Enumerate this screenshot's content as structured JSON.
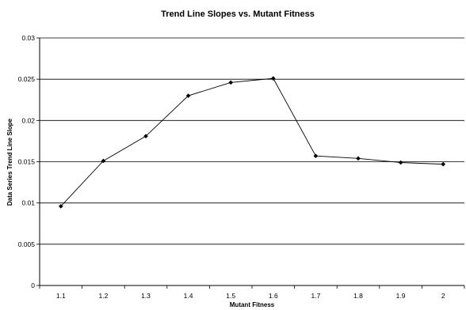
{
  "chart_data": {
    "type": "line",
    "title": "Trend Line Slopes vs. Mutant Fitness",
    "xlabel": "Mutant Fitness",
    "ylabel": "Data Series Trend Line Slope",
    "categories": [
      "1.1",
      "1.2",
      "1.3",
      "1.4",
      "1.5",
      "1.6",
      "1.7",
      "1.8",
      "1.9",
      "2"
    ],
    "y_ticks": [
      "0",
      "0.005",
      "0.01",
      "0.015",
      "0.02",
      "0.025",
      "0.03"
    ],
    "ylim": [
      0,
      0.03
    ],
    "grid": true,
    "legend": "none",
    "series": [
      {
        "values": [
          0.0096,
          0.0151,
          0.0181,
          0.023,
          0.0246,
          0.0251,
          0.0157,
          0.0154,
          0.0149,
          0.0147
        ]
      }
    ]
  }
}
